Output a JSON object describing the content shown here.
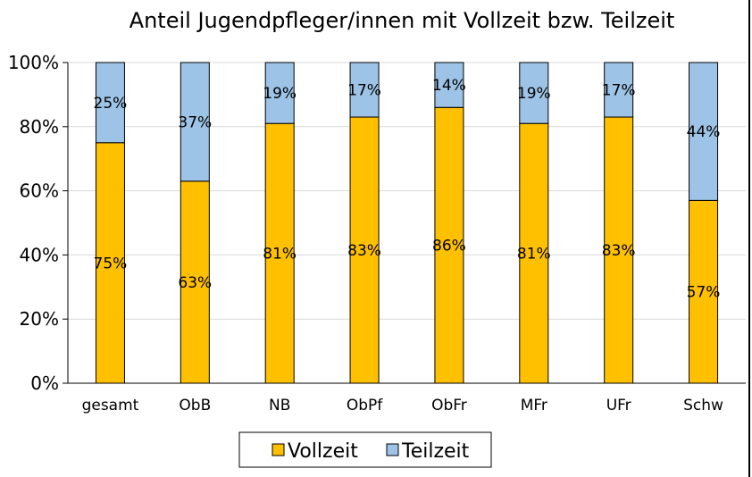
{
  "chart_data": {
    "type": "bar",
    "stacked": true,
    "title": "Anteil Jugendpfleger/innen mit Vollzeit bzw. Teilzeit",
    "xlabel": "",
    "ylabel": "",
    "ylim": [
      0,
      100
    ],
    "y_ticks": [
      "0%",
      "20%",
      "40%",
      "60%",
      "80%",
      "100%"
    ],
    "categories": [
      "gesamt",
      "ObB",
      "NB",
      "ObPf",
      "ObFr",
      "MFr",
      "UFr",
      "Schw"
    ],
    "series": [
      {
        "name": "Vollzeit",
        "color": "#FFC000",
        "values": [
          75,
          63,
          81,
          83,
          86,
          81,
          83,
          57
        ],
        "labels": [
          "75%",
          "63%",
          "81%",
          "83%",
          "86%",
          "81%",
          "83%",
          "57%"
        ]
      },
      {
        "name": "Teilzeit",
        "color": "#9DC3E6",
        "values": [
          25,
          37,
          19,
          17,
          14,
          19,
          17,
          44
        ],
        "labels": [
          "25%",
          "37%",
          "19%",
          "17%",
          "14%",
          "19%",
          "17%",
          "44%"
        ]
      }
    ],
    "grid": true,
    "legend_position": "bottom"
  }
}
